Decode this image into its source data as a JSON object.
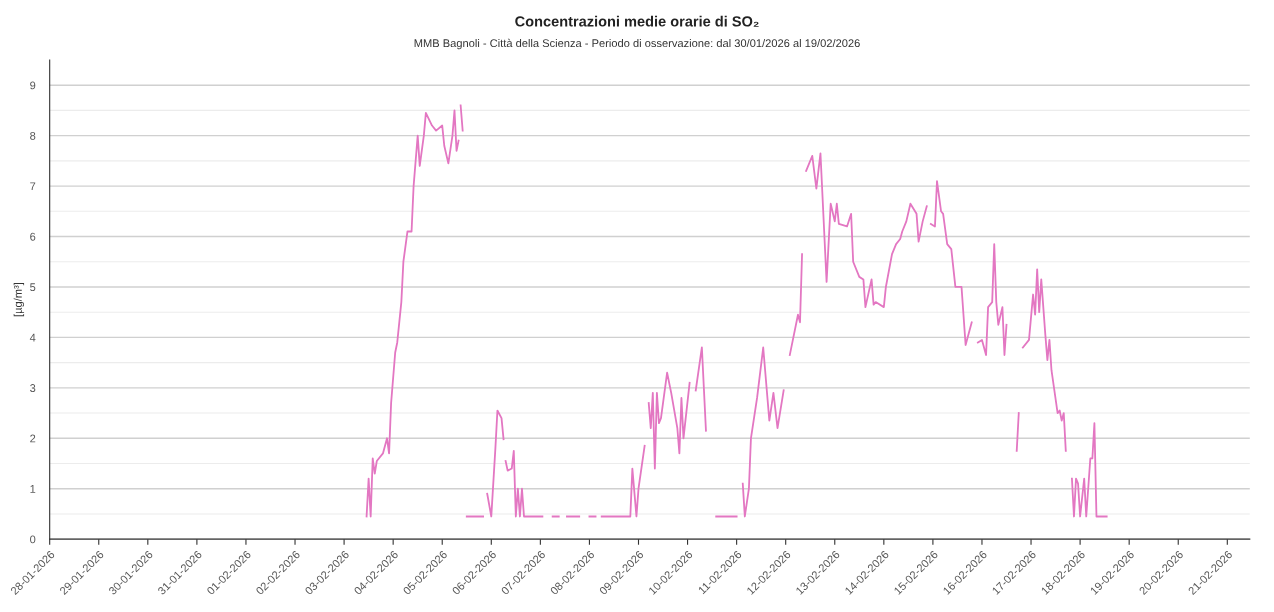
{
  "chart_data": {
    "type": "line",
    "title": "Concentrazioni medie orarie di SO₂",
    "subtitle": "MMB Bagnoli - Città della Scienza - Periodo di osservazione: dal 30/01/2026 al 19/02/2026",
    "ylabel": "[µg/m³]",
    "xlim": [
      "2026-01-28",
      "2026-02-21T11:00"
    ],
    "xticks": [
      {
        "value": "2026-01-28",
        "label": "28-01-2026"
      },
      {
        "value": "2026-01-29",
        "label": "29-01-2026"
      },
      {
        "value": "2026-01-30",
        "label": "30-01-2026"
      },
      {
        "value": "2026-01-31",
        "label": "31-01-2026"
      },
      {
        "value": "2026-02-01",
        "label": "01-02-2026"
      },
      {
        "value": "2026-02-02",
        "label": "02-02-2026"
      },
      {
        "value": "2026-02-03",
        "label": "03-02-2026"
      },
      {
        "value": "2026-02-04",
        "label": "04-02-2026"
      },
      {
        "value": "2026-02-05",
        "label": "05-02-2026"
      },
      {
        "value": "2026-02-06",
        "label": "06-02-2026"
      },
      {
        "value": "2026-02-07",
        "label": "07-02-2026"
      },
      {
        "value": "2026-02-08",
        "label": "08-02-2026"
      },
      {
        "value": "2026-02-09",
        "label": "09-02-2026"
      },
      {
        "value": "2026-02-10",
        "label": "10-02-2026"
      },
      {
        "value": "2026-02-11",
        "label": "11-02-2026"
      },
      {
        "value": "2026-02-12",
        "label": "12-02-2026"
      },
      {
        "value": "2026-02-13",
        "label": "13-02-2026"
      },
      {
        "value": "2026-02-14",
        "label": "14-02-2026"
      },
      {
        "value": "2026-02-15",
        "label": "15-02-2026"
      },
      {
        "value": "2026-02-16",
        "label": "16-02-2026"
      },
      {
        "value": "2026-02-17",
        "label": "17-02-2026"
      },
      {
        "value": "2026-02-18",
        "label": "18-02-2026"
      },
      {
        "value": "2026-02-19",
        "label": "19-02-2026"
      },
      {
        "value": "2026-02-20",
        "label": "20-02-2026"
      },
      {
        "value": "2026-02-21",
        "label": "21-02-2026"
      }
    ],
    "ylim": [
      0,
      9.5
    ],
    "yticks": [
      0,
      {
        "value": 0.5,
        "label": null
      },
      1,
      {
        "value": 1.5,
        "label": null
      },
      2,
      {
        "value": 2.5,
        "label": null
      },
      3,
      {
        "value": 3.5,
        "label": null
      },
      4,
      {
        "value": 4.5,
        "label": null
      },
      5,
      {
        "value": 5.5,
        "label": null
      },
      6,
      {
        "value": 6.5,
        "label": null
      },
      7,
      {
        "value": 7.5,
        "label": null
      },
      8,
      {
        "value": 8.5,
        "label": null
      },
      9
    ],
    "grid": "y",
    "marker": "none",
    "line_style": "solid",
    "series": [
      {
        "color": "#e377c2",
        "x": [
          "2026-02-03T11:00",
          "2026-02-03T12:00",
          "2026-02-03T13:00",
          "2026-02-03T14:00",
          "2026-02-03T15:00",
          "2026-02-03T16:00",
          "2026-02-03T19:00",
          "2026-02-03T21:00",
          "2026-02-03T22:00",
          "2026-02-03T23:00",
          "2026-02-04T01:00",
          "2026-02-04T02:00",
          "2026-02-04T04:00",
          "2026-02-04T05:00",
          "2026-02-04T07:00",
          "2026-02-04T09:00",
          "2026-02-04T10:00",
          "2026-02-04T12:00",
          "2026-02-04T13:00",
          "2026-02-04T15:00",
          "2026-02-04T16:00",
          "2026-02-04T19:00",
          "2026-02-04T21:00",
          "2026-02-05T00:00",
          "2026-02-05T01:00",
          "2026-02-05T03:00",
          "2026-02-05T05:00",
          "2026-02-05T06:00",
          "2026-02-05T07:00",
          "2026-02-05T08:00",
          "2026-02-05T08:30",
          "2026-02-05T09:00",
          "2026-02-05T10:00",
          "2026-02-05T11:00",
          "2026-02-05T12:00",
          "2026-02-05T20:00",
          "2026-02-05T21:00",
          "2026-02-05T22:00",
          "2026-02-06T00:00",
          "2026-02-06T02:00",
          "2026-02-06T03:00",
          "2026-02-06T05:00",
          "2026-02-06T06:00",
          "2026-02-06T06:30",
          "2026-02-06T07:00",
          "2026-02-06T08:00",
          "2026-02-06T10:00",
          "2026-02-06T11:00",
          "2026-02-06T12:00",
          "2026-02-06T13:00",
          "2026-02-06T14:00",
          "2026-02-06T15:00",
          "2026-02-06T16:00",
          "2026-02-07T01:00",
          "2026-02-07T04:00",
          "2026-02-07T06:00",
          "2026-02-07T09:00",
          "2026-02-07T10:00",
          "2026-02-07T13:00",
          "2026-02-07T19:00",
          "2026-02-07T22:00",
          "2026-02-08T00:00",
          "2026-02-08T03:00",
          "2026-02-08T05:00",
          "2026-02-08T06:00",
          "2026-02-08T20:00",
          "2026-02-08T21:00",
          "2026-02-08T23:00",
          "2026-02-09T00:00",
          "2026-02-09T03:00",
          "2026-02-09T04:00",
          "2026-02-09T05:00",
          "2026-02-09T06:00",
          "2026-02-09T07:00",
          "2026-02-09T08:00",
          "2026-02-09T09:00",
          "2026-02-09T10:00",
          "2026-02-09T11:00",
          "2026-02-09T14:00",
          "2026-02-09T16:00",
          "2026-02-09T19:00",
          "2026-02-09T20:00",
          "2026-02-09T21:00",
          "2026-02-09T22:00",
          "2026-02-10T01:00",
          "2026-02-10T02:00",
          "2026-02-10T04:00",
          "2026-02-10T07:00",
          "2026-02-10T09:00",
          "2026-02-10T11:00",
          "2026-02-10T14:00",
          "2026-02-11T00:00",
          "2026-02-11T01:00",
          "2026-02-11T03:00",
          "2026-02-11T04:00",
          "2026-02-11T06:00",
          "2026-02-11T07:00",
          "2026-02-11T10:00",
          "2026-02-11T13:00",
          "2026-02-11T16:00",
          "2026-02-11T18:00",
          "2026-02-11T20:00",
          "2026-02-11T23:00",
          "2026-02-12T01:00",
          "2026-02-12T02:00",
          "2026-02-12T06:00",
          "2026-02-12T07:00",
          "2026-02-12T08:00",
          "2026-02-12T09:00",
          "2026-02-12T10:00",
          "2026-02-12T13:00",
          "2026-02-12T15:00",
          "2026-02-12T17:00",
          "2026-02-12T20:00",
          "2026-02-12T22:00",
          "2026-02-13T00:00",
          "2026-02-13T01:00",
          "2026-02-13T02:00",
          "2026-02-13T06:00",
          "2026-02-13T08:00",
          "2026-02-13T09:00",
          "2026-02-13T12:00",
          "2026-02-13T14:00",
          "2026-02-13T15:00",
          "2026-02-13T18:00",
          "2026-02-13T19:00",
          "2026-02-13T20:00",
          "2026-02-14T00:00",
          "2026-02-14T01:00",
          "2026-02-14T04:00",
          "2026-02-14T06:00",
          "2026-02-14T08:00",
          "2026-02-14T09:00",
          "2026-02-14T11:00",
          "2026-02-14T13:00",
          "2026-02-14T16:00",
          "2026-02-14T17:00",
          "2026-02-14T19:00",
          "2026-02-14T21:00",
          "2026-02-14T22:00",
          "2026-02-14T23:00",
          "2026-02-15T01:00",
          "2026-02-15T02:00",
          "2026-02-15T04:00",
          "2026-02-15T05:00",
          "2026-02-15T07:00",
          "2026-02-15T09:00",
          "2026-02-15T11:00",
          "2026-02-15T14:00",
          "2026-02-15T16:00",
          "2026-02-15T19:00",
          "2026-02-15T20:00",
          "2026-02-15T22:00",
          "2026-02-16T00:00",
          "2026-02-16T02:00",
          "2026-02-16T03:00",
          "2026-02-16T05:00",
          "2026-02-16T06:00",
          "2026-02-16T07:00",
          "2026-02-16T08:00",
          "2026-02-16T10:00",
          "2026-02-16T11:00",
          "2026-02-16T12:00",
          "2026-02-16T14:00",
          "2026-02-16T17:00",
          "2026-02-16T18:00",
          "2026-02-16T19:00",
          "2026-02-16T20:00",
          "2026-02-16T23:00",
          "2026-02-17T01:00",
          "2026-02-17T02:00",
          "2026-02-17T03:00",
          "2026-02-17T04:00",
          "2026-02-17T05:00",
          "2026-02-17T07:00",
          "2026-02-17T08:00",
          "2026-02-17T09:00",
          "2026-02-17T10:00",
          "2026-02-17T13:00",
          "2026-02-17T14:00",
          "2026-02-17T15:00",
          "2026-02-17T16:00",
          "2026-02-17T17:00",
          "2026-02-17T18:30",
          "2026-02-17T20:00",
          "2026-02-17T21:00",
          "2026-02-17T22:00",
          "2026-02-17T23:00",
          "2026-02-18T00:00",
          "2026-02-18T02:00",
          "2026-02-18T03:00",
          "2026-02-18T05:00",
          "2026-02-18T06:00",
          "2026-02-18T07:00",
          "2026-02-18T08:00",
          "2026-02-18T13:00"
        ],
        "values": [
          0.45,
          1.2,
          0.45,
          1.6,
          1.3,
          1.55,
          1.7,
          2.0,
          1.7,
          2.7,
          3.7,
          3.9,
          4.7,
          5.5,
          6.1,
          6.1,
          7.0,
          8.0,
          7.4,
          8.0,
          8.45,
          8.2,
          8.1,
          8.2,
          7.8,
          7.45,
          8.0,
          8.5,
          7.7,
          7.9,
          null,
          8.6,
          8.1,
          null,
          0.45,
          0.45,
          null,
          0.9,
          0.45,
          1.8,
          2.55,
          2.4,
          1.98,
          null,
          1.55,
          1.36,
          1.4,
          1.75,
          0.45,
          1.0,
          0.45,
          1.0,
          0.45,
          0.45,
          null,
          0.45,
          0.45,
          null,
          0.45,
          0.45,
          null,
          0.45,
          0.45,
          null,
          0.45,
          0.45,
          1.4,
          0.45,
          1.0,
          1.85,
          null,
          2.7,
          2.2,
          2.9,
          1.4,
          2.9,
          2.3,
          2.4,
          3.3,
          2.9,
          2.2,
          1.7,
          2.8,
          2.0,
          3.1,
          null,
          2.95,
          3.8,
          2.15,
          null,
          0.45,
          0.45,
          null,
          1.1,
          0.45,
          1.0,
          2.0,
          2.8,
          3.8,
          2.35,
          2.9,
          2.2,
          2.95,
          null,
          3.65,
          4.45,
          4.3,
          5.65,
          null,
          7.3,
          7.6,
          6.95,
          7.65,
          5.1,
          6.65,
          6.3,
          6.65,
          6.25,
          6.2,
          6.45,
          5.5,
          5.2,
          5.15,
          4.6,
          5.15,
          4.65,
          4.7,
          4.6,
          5.0,
          5.65,
          5.85,
          5.95,
          6.1,
          6.3,
          6.65,
          6.45,
          5.9,
          6.3,
          6.6,
          null,
          6.25,
          6.2,
          7.1,
          6.5,
          6.45,
          5.85,
          5.75,
          5.0,
          5.0,
          3.85,
          4.3,
          null,
          3.9,
          3.95,
          3.65,
          4.6,
          4.7,
          5.85,
          4.7,
          4.25,
          4.6,
          3.65,
          4.25,
          null,
          1.75,
          2.5,
          null,
          3.8,
          3.95,
          4.85,
          4.45,
          5.35,
          4.5,
          5.15,
          4.05,
          3.55,
          3.95,
          3.35,
          2.5,
          2.55,
          2.35,
          2.5,
          1.75,
          null,
          1.2,
          0.45,
          1.2,
          1.1,
          0.45,
          1.2,
          0.45,
          1.6,
          1.6,
          2.3,
          0.45,
          0.45
        ]
      }
    ]
  }
}
